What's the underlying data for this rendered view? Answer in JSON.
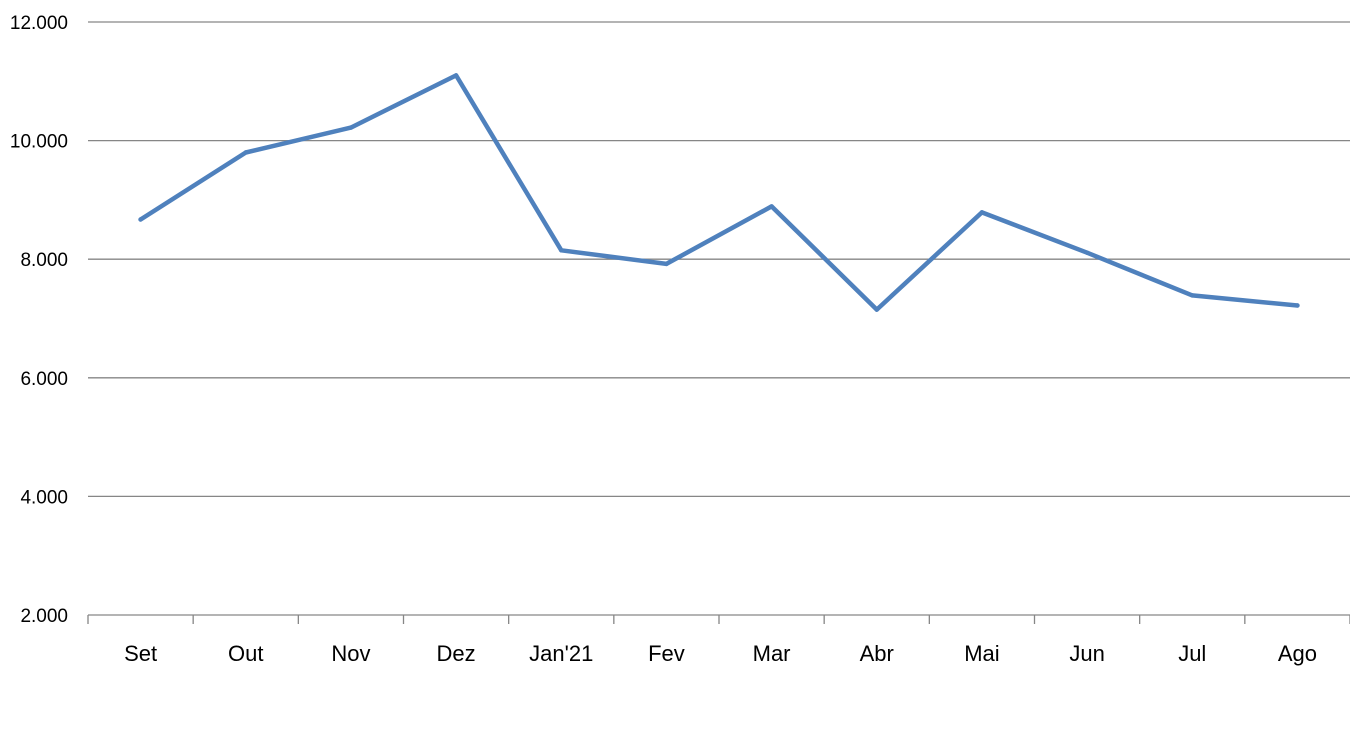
{
  "chart_data": {
    "type": "line",
    "title": "",
    "xlabel": "",
    "ylabel": "",
    "categories": [
      "Set",
      "Out",
      "Nov",
      "Dez",
      "Jan'21",
      "Fev",
      "Mar",
      "Abr",
      "Mai",
      "Jun",
      "Jul",
      "Ago"
    ],
    "series": [
      {
        "values": [
          8670,
          9800,
          10220,
          11100,
          8150,
          7920,
          8890,
          7150,
          8790,
          8110,
          7390,
          7220
        ]
      }
    ],
    "ylim": [
      2000,
      12000
    ],
    "yticks": [
      2000,
      4000,
      6000,
      8000,
      10000,
      12000
    ],
    "ytick_labels": [
      "2.000",
      "4.000",
      "6.000",
      "8.000",
      "10.000",
      "12.000"
    ],
    "grid": true,
    "legend": "none",
    "colors": {
      "line": "#4f81bd",
      "grid": "#868686"
    }
  }
}
